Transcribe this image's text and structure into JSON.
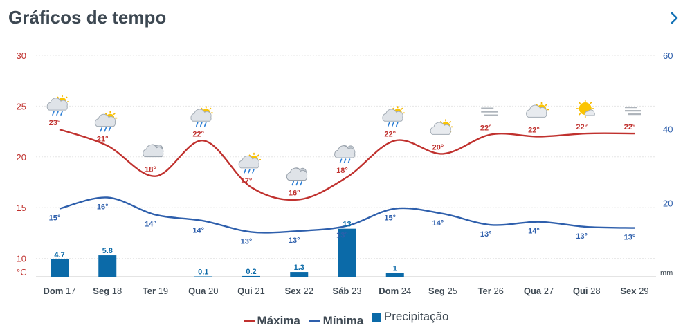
{
  "header": {
    "title": "Gráficos de tempo",
    "next_icon": "chevron-right-icon"
  },
  "colors": {
    "max": "#c0312e",
    "min": "#2e5fac",
    "precip": "#0b6aa8",
    "text": "#3d4852"
  },
  "legend": {
    "max_label": "Máxima",
    "min_label": "Mínima",
    "precip_label": "Precipitação"
  },
  "chart_data": {
    "type": "line",
    "days": [
      {
        "dow": "Dom",
        "day": "17",
        "max": 23,
        "min": 15,
        "precip": "4.7",
        "icon": "sun-cloud-rain-icon"
      },
      {
        "dow": "Seg",
        "day": "18",
        "max": 21,
        "min": 16,
        "precip": "5.8",
        "icon": "sun-cloud-rain-icon"
      },
      {
        "dow": "Ter",
        "day": "19",
        "max": 18,
        "min": 14,
        "precip": "",
        "icon": "cloudy-icon"
      },
      {
        "dow": "Qua",
        "day": "20",
        "max": 22,
        "min": 14,
        "precip": "0.1",
        "icon": "sun-cloud-rain-icon"
      },
      {
        "dow": "Qui",
        "day": "21",
        "max": 17,
        "min": 13,
        "precip": "0.2",
        "icon": "sun-cloud-rain-icon"
      },
      {
        "dow": "Sex",
        "day": "22",
        "max": 16,
        "min": 13,
        "precip": "1.3",
        "icon": "cloud-rain-icon"
      },
      {
        "dow": "Sáb",
        "day": "23",
        "max": 18,
        "min": 13,
        "precip": "13",
        "icon": "cloud-rain-icon"
      },
      {
        "dow": "Dom",
        "day": "24",
        "max": 22,
        "min": 15,
        "precip": "1",
        "icon": "sun-cloud-rain-icon"
      },
      {
        "dow": "Seg",
        "day": "25",
        "max": 20,
        "min": 14,
        "precip": "",
        "icon": "sun-cloud-icon"
      },
      {
        "dow": "Ter",
        "day": "26",
        "max": 22,
        "min": 13,
        "precip": "",
        "icon": "fog-icon"
      },
      {
        "dow": "Qua",
        "day": "27",
        "max": 22,
        "min": 14,
        "precip": "",
        "icon": "sun-cloud-icon"
      },
      {
        "dow": "Qui",
        "day": "28",
        "max": 22,
        "min": 13,
        "precip": "",
        "icon": "sun-small-cloud-icon"
      },
      {
        "dow": "Sex",
        "day": "29",
        "max": 22,
        "min": 13,
        "precip": "",
        "icon": "fog-icon"
      }
    ],
    "max_curve": [
      22.7,
      21.1,
      18.1,
      21.6,
      17.0,
      15.8,
      18.0,
      21.6,
      20.3,
      22.2,
      22.0,
      22.3,
      22.3
    ],
    "min_curve": [
      14.9,
      16.0,
      14.3,
      13.7,
      12.6,
      12.7,
      13.2,
      14.9,
      14.4,
      13.3,
      13.6,
      13.1,
      13.0
    ],
    "temp_ticks": [
      "10",
      "15",
      "20",
      "25",
      "30"
    ],
    "temp_unit": "°C",
    "temp_range": [
      8.2,
      30
    ],
    "precip_ticks": [
      "20",
      "40",
      "60"
    ],
    "precip_unit": "mm",
    "precip_range": [
      0,
      60
    ],
    "degree_suffix": "°"
  }
}
